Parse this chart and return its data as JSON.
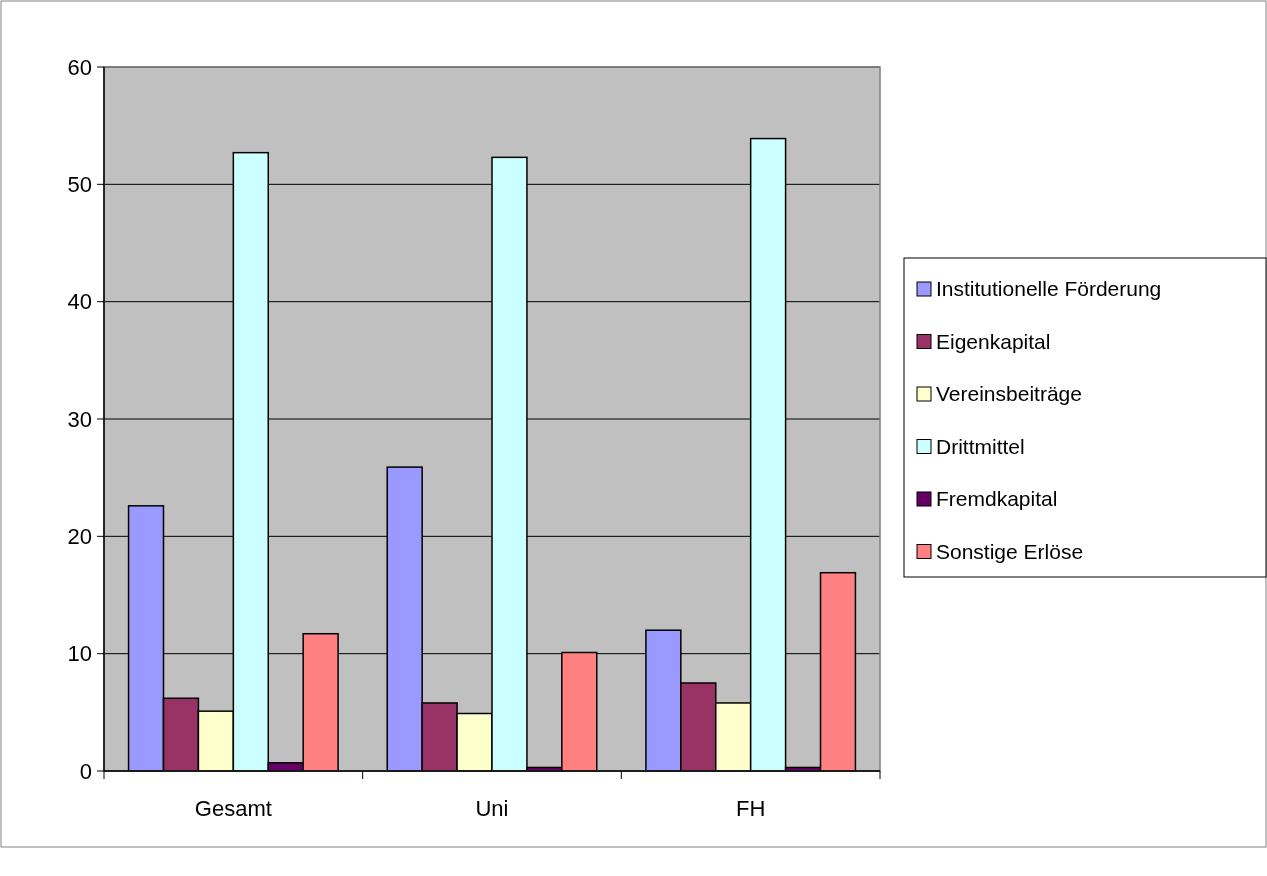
{
  "chart_data": {
    "type": "bar",
    "categories": [
      "Gesamt",
      "Uni",
      "FH"
    ],
    "series": [
      {
        "name": "Institutionelle Förderung",
        "color": "#9999ff",
        "values": [
          22.6,
          25.9,
          12.0
        ]
      },
      {
        "name": "Eigenkapital",
        "color": "#993366",
        "values": [
          6.2,
          5.8,
          7.5
        ]
      },
      {
        "name": "Vereinsbeiträge",
        "color": "#ffffcc",
        "values": [
          5.1,
          4.9,
          5.8
        ]
      },
      {
        "name": "Drittmittel",
        "color": "#ccffff",
        "values": [
          52.7,
          52.3,
          53.9
        ]
      },
      {
        "name": "Fremdkapital",
        "color": "#660066",
        "values": [
          0.7,
          0.3,
          0.3
        ]
      },
      {
        "name": "Sonstige Erlöse",
        "color": "#ff8080",
        "values": [
          11.7,
          10.1,
          16.9
        ]
      }
    ],
    "ylim": [
      0,
      60
    ],
    "yticks": [
      0,
      10,
      20,
      30,
      40,
      50,
      60
    ],
    "grid": "y",
    "legend": "right"
  }
}
